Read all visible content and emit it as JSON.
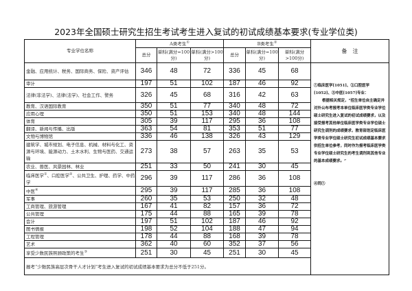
{
  "title": "2023年全国硕士研究生招生考试考生进入复试的初试成绩基本要求(专业学位类)",
  "header": {
    "name_col": "专业学位名称",
    "group_a": "A类考生",
    "group_a_sup": "①",
    "group_b": "B类考生",
    "group_b_sup": "②",
    "total": "总分",
    "single_100": "单科(满分=100分)",
    "single_gt100": "单科(满分>100分)",
    "notes": "备　注"
  },
  "rows": [
    {
      "name": [
        {
          "t": "金融、应用统计、税务、国际商务、保险、资产评估"
        }
      ],
      "a": [
        "346",
        "48",
        "72"
      ],
      "b": [
        "336",
        "45",
        "68"
      ],
      "h": "t1"
    },
    {
      "name": [
        {
          "t": "审计"
        }
      ],
      "a": [
        "197",
        "51",
        "102"
      ],
      "b": [
        "187",
        "46",
        "92"
      ],
      "h": "r"
    },
    {
      "name": [
        {
          "t": "法律(非法学)、法律(法学)、社会工作、警务"
        }
      ],
      "a": [
        "326",
        "45",
        "68"
      ],
      "b": [
        "316",
        "42",
        "63"
      ],
      "h": "tall"
    },
    {
      "name": [
        {
          "t": "教育、汉语国际教育"
        }
      ],
      "a": [
        "350",
        "51",
        "77"
      ],
      "b": [
        "340",
        "48",
        "72"
      ],
      "h": "r"
    },
    {
      "name": [
        {
          "t": "应用心理"
        }
      ],
      "a": [
        "350",
        "51",
        "153"
      ],
      "b": [
        "340",
        "48",
        "144"
      ],
      "h": "r"
    },
    {
      "name": [
        {
          "t": "体育"
        }
      ],
      "a": [
        "305",
        "39",
        "117"
      ],
      "b": [
        "295",
        "36",
        "108"
      ],
      "h": "r"
    },
    {
      "name": [
        {
          "t": "翻译、新闻与传播、出版"
        }
      ],
      "a": [
        "363",
        "54",
        "81"
      ],
      "b": [
        "353",
        "51",
        "77"
      ],
      "h": "r"
    },
    {
      "name": [
        {
          "t": "文物与博物馆"
        }
      ],
      "a": [
        "336",
        "46",
        "138"
      ],
      "b": [
        "326",
        "43",
        "129"
      ],
      "h": "r"
    },
    {
      "name": [
        {
          "t": "建筑学、城市规划、电子信息、机械、材料与化工、资源与环境、能源动力、土木水利、生物与医药、交通运输"
        }
      ],
      "a": [
        "273",
        "38",
        "57"
      ],
      "b": [
        "263",
        "35",
        "53"
      ],
      "h": "t3"
    },
    {
      "name": [
        {
          "t": "农业、兽医、风景园林、林业"
        }
      ],
      "a": [
        "251",
        "33",
        "50"
      ],
      "b": [
        "241",
        "30",
        "45"
      ],
      "h": "r"
    },
    {
      "name": [
        {
          "t": "临床医学",
          "sup": "①"
        },
        {
          "t": "、口腔医学",
          "sup": "②"
        },
        {
          "t": "、公共卫生、护理、药学、中药学"
        }
      ],
      "a": [
        "296",
        "39",
        "117"
      ],
      "b": [
        "286",
        "36",
        "108"
      ],
      "h": "tall"
    },
    {
      "name": [
        {
          "t": "中医",
          "sup": "④"
        }
      ],
      "a": [
        "295",
        "39",
        "117"
      ],
      "b": [
        "285",
        "36",
        "108"
      ],
      "h": "r"
    },
    {
      "name": [
        {
          "t": "军事"
        }
      ],
      "a": [
        "260",
        "35",
        "53"
      ],
      "b": [
        "250",
        "32",
        "48"
      ],
      "h": "r"
    },
    {
      "name": [
        {
          "t": "工商管理、旅游管理"
        }
      ],
      "a": [
        "167",
        "41",
        "82"
      ],
      "b": [
        "157",
        "36",
        "72"
      ],
      "h": "r"
    },
    {
      "name": [
        {
          "t": "公共管理"
        }
      ],
      "a": [
        "175",
        "44",
        "88"
      ],
      "b": [
        "165",
        "39",
        "78"
      ],
      "h": "r"
    },
    {
      "name": [
        {
          "t": "会计"
        }
      ],
      "a": [
        "197",
        "51",
        "102"
      ],
      "b": [
        "187",
        "46",
        "92"
      ],
      "h": "r"
    },
    {
      "name": [
        {
          "t": "图书情报"
        }
      ],
      "a": [
        "198",
        "52",
        "104"
      ],
      "b": [
        "188",
        "47",
        "94"
      ],
      "h": "r"
    },
    {
      "name": [
        {
          "t": "工程管理"
        }
      ],
      "a": [
        "178",
        "44",
        "88"
      ],
      "b": [
        "168",
        "39",
        "78"
      ],
      "h": "r"
    },
    {
      "name": [
        {
          "t": "艺术"
        }
      ],
      "a": [
        "362",
        "40",
        "60"
      ],
      "b": [
        "352",
        "37",
        "56"
      ],
      "h": "r"
    },
    {
      "name": [
        {
          "t": "享受少数民族照顾政策的考生",
          "sup": "③"
        }
      ],
      "a": [
        "251",
        "30",
        "45"
      ],
      "b": [
        "251",
        "30",
        "45"
      ],
      "h": "r"
    }
  ],
  "notes": {
    "line1": "①临床医学[1051]、②口腔医学[1052]、③中医[1057]专业：",
    "line2": "根据相关规定，“招生单位自主确定并对外公布考报考本单位临床医学类专业学位硕士研究生进入复试的初试成绩要求，以及接受报考其他单位临床医学类专业学位硕士研究生调剂的成绩要求，教育部划定临床医学类专业学位硕士研究生初试成绩基本要求供招生单位参考，同时作为报考临床医学类专业学位硕士研究生的考生调剂到其他专业的基本成绩要求。”",
    "line3": "④同①"
  },
  "footer": "报考“少数民族高层次骨干人才计划”考生进入复试的初试成绩基本要求为总分不低于251分。"
}
